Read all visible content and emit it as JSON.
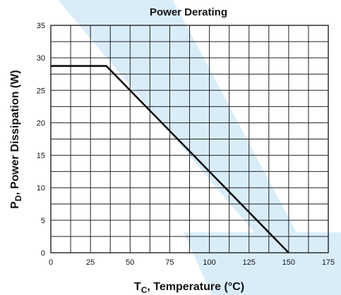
{
  "chart_data": {
    "type": "line",
    "title": "Power Derating",
    "xlabel": {
      "main": "T",
      "sub": "C",
      "rest": ", Temperature (°C)"
    },
    "ylabel": {
      "main": "P",
      "sub": "D",
      "rest": ", Power Dissipation (W)"
    },
    "xlim": [
      0,
      175
    ],
    "ylim": [
      0,
      35
    ],
    "xticks": [
      0,
      25,
      50,
      75,
      100,
      125,
      150,
      175
    ],
    "yticks": [
      0,
      5,
      10,
      15,
      20,
      25,
      30,
      35
    ],
    "grid": true,
    "series": [
      {
        "x": [
          0,
          35,
          150
        ],
        "y": [
          28.75,
          28.75,
          0
        ]
      }
    ]
  },
  "colors": {
    "line": "#111111",
    "grid": "#222222",
    "watermark": "#d9edf9"
  }
}
